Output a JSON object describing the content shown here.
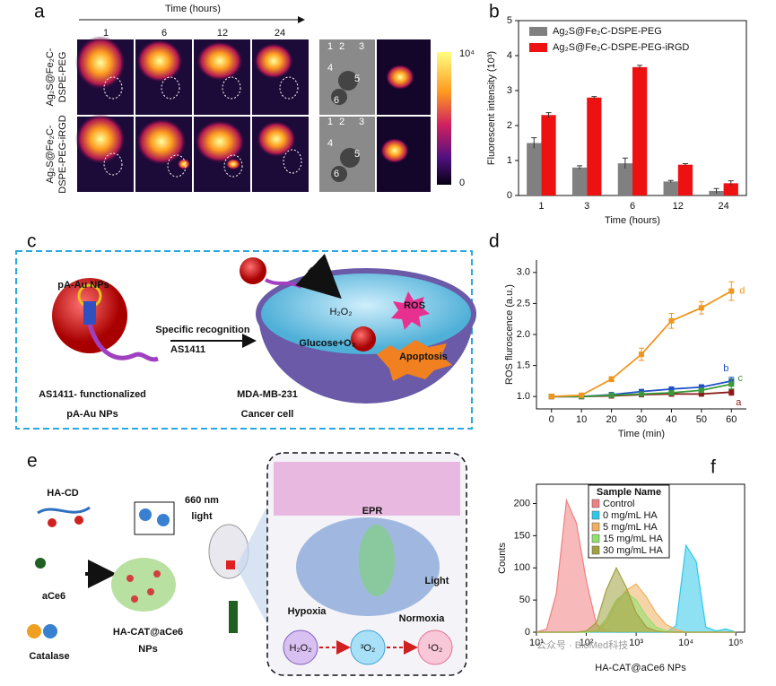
{
  "panels": [
    "a",
    "b",
    "c",
    "d",
    "e",
    "f"
  ],
  "panel_a": {
    "time_axis": "Time (hours)",
    "time_points": [
      "1",
      "6",
      "12",
      "24"
    ],
    "groups": [
      [
        "Ag₂S@Fe₂C-",
        "DSPE-PEG"
      ],
      [
        "Ag₂S@Fe₂C-",
        "DSPE-PEG-iRGD"
      ]
    ],
    "organ_numbers": [
      [
        "1",
        "2",
        "3",
        "4",
        "5",
        "6"
      ],
      [
        "1",
        "2",
        "3",
        "4",
        "5",
        "6"
      ]
    ],
    "colorbar_max": "10⁴",
    "colorbar_min": "0"
  },
  "panel_c": {
    "np_label": "pA-Au NPs",
    "aptamer": "AS1411",
    "step": "Specific recognition",
    "np_caption": [
      "AS1411- functionalized",
      "pA-Au NPs"
    ],
    "h2o2": "H₂O₂",
    "ros": "ROS",
    "glucose": "Glucose+O₂",
    "apoptosis": "Apoptosis",
    "cell_caption": [
      "MDA-MB-231",
      "Cancer cell"
    ]
  },
  "panel_e": {
    "ha_cd": "HA-CD",
    "ace6": "aCe6",
    "catalase": "Catalase",
    "np": [
      "HA-CAT@aCe6",
      "NPs"
    ],
    "light": [
      "660 nm",
      "light"
    ],
    "epr": "EPR",
    "light_tumor": "Light",
    "hypoxia": "Hypoxia",
    "normoxia": "Normoxia",
    "species": [
      "H₂O₂",
      "³O₂",
      "¹O₂"
    ]
  },
  "watermark": "公众号 · BioMed科技",
  "chart_data": [
    {
      "type": "bar",
      "xlabel": "Time (hours)",
      "ylabel": "Fluorescent intensity (10³)",
      "categories": [
        "1",
        "3",
        "6",
        "12",
        "24"
      ],
      "series": [
        {
          "name": "Ag₂S@Fe₂C-DSPE-PEG",
          "color": "#808080",
          "values": [
            1.5,
            0.8,
            0.92,
            0.4,
            0.13
          ],
          "errors": [
            0.15,
            0.05,
            0.15,
            0.03,
            0.07
          ]
        },
        {
          "name": "Ag₂S@Fe₂C-DSPE-PEG-iRGD",
          "color": "#ee1111",
          "values": [
            2.3,
            2.8,
            3.67,
            0.88,
            0.35
          ],
          "errors": [
            0.07,
            0.03,
            0.05,
            0.03,
            0.07
          ]
        }
      ],
      "ylim": [
        0,
        5
      ],
      "yticks": [
        0,
        1,
        2,
        3,
        4,
        5
      ]
    },
    {
      "type": "line",
      "xlabel": "Time (min)",
      "ylabel": "ROS fluroscence (a.u.)",
      "x": [
        0,
        10,
        20,
        30,
        40,
        50,
        60
      ],
      "series": [
        {
          "name": "a",
          "color": "#8b1a1a",
          "values": [
            1.0,
            1.0,
            1.01,
            1.03,
            1.04,
            1.04,
            1.07
          ],
          "errors": [
            0.01,
            0.01,
            0.01,
            0.02,
            0.02,
            0.02,
            0.05
          ]
        },
        {
          "name": "b",
          "color": "#2050c8",
          "values": [
            1.0,
            1.0,
            1.03,
            1.08,
            1.12,
            1.15,
            1.25
          ],
          "errors": [
            0.01,
            0.02,
            0.02,
            0.03,
            0.03,
            0.04,
            0.06
          ]
        },
        {
          "name": "c",
          "color": "#3a9a3a",
          "values": [
            1.0,
            1.0,
            1.02,
            1.04,
            1.06,
            1.1,
            1.2
          ],
          "errors": [
            0.01,
            0.01,
            0.02,
            0.02,
            0.02,
            0.03,
            0.08
          ]
        },
        {
          "name": "d",
          "color": "#f0961e",
          "values": [
            1.0,
            1.02,
            1.28,
            1.68,
            2.22,
            2.43,
            2.7
          ],
          "errors": [
            0.02,
            0.03,
            0.04,
            0.1,
            0.12,
            0.1,
            0.15
          ]
        }
      ],
      "xlim": [
        -5,
        65
      ],
      "xticks": [
        0,
        10,
        20,
        30,
        40,
        50,
        60
      ],
      "ylim": [
        0.8,
        3.2
      ],
      "yticks": [
        {
          "value": 1,
          "label": "1.0"
        },
        1.5,
        {
          "value": 2,
          "label": "2.0"
        },
        2.5,
        {
          "value": 3,
          "label": "3.0"
        }
      ]
    },
    {
      "type": "area",
      "xlabel": "HA-CAT@aCe6 NPs",
      "ylabel": "Counts",
      "xscale": "log",
      "legend_title": "Sample Name",
      "x": [
        10,
        16,
        25,
        40,
        63,
        100,
        160,
        250,
        400,
        630,
        1000,
        1600,
        2500,
        4000,
        6300,
        10000,
        16000,
        25000,
        40000,
        63000,
        100000
      ],
      "series": [
        {
          "name": "Control",
          "color": "#f08080",
          "values": [
            0,
            5,
            60,
            205,
            170,
            80,
            12,
            2,
            0,
            0,
            0,
            0,
            0,
            0,
            0,
            0,
            0,
            0,
            0,
            0,
            0
          ]
        },
        {
          "name": "0 mg/mL HA",
          "color": "#30c8e8",
          "values": [
            0,
            0,
            0,
            0,
            0,
            0,
            0,
            0,
            0,
            0,
            0,
            0,
            0,
            0,
            10,
            135,
            110,
            8,
            2,
            5,
            0
          ]
        },
        {
          "name": "5 mg/mL HA",
          "color": "#f0b060",
          "values": [
            0,
            0,
            0,
            0,
            0,
            0,
            2,
            15,
            45,
            65,
            75,
            55,
            30,
            12,
            4,
            0,
            0,
            0,
            0,
            0,
            0
          ]
        },
        {
          "name": "15 mg/mL HA",
          "color": "#90e070",
          "values": [
            0,
            0,
            0,
            0,
            0,
            0,
            3,
            20,
            50,
            62,
            50,
            25,
            8,
            2,
            0,
            0,
            0,
            0,
            0,
            0,
            0
          ]
        },
        {
          "name": "30 mg/mL HA",
          "color": "#a0a040",
          "values": [
            0,
            0,
            0,
            0,
            0,
            2,
            15,
            65,
            100,
            70,
            30,
            8,
            2,
            0,
            0,
            0,
            0,
            0,
            0,
            0,
            0
          ]
        }
      ],
      "xlim": [
        10,
        150000
      ],
      "xticks": [
        {
          "value": 10,
          "label": "10¹"
        },
        {
          "value": 100,
          "label": "10²"
        },
        {
          "value": 1000,
          "label": "10³"
        },
        {
          "value": 10000,
          "label": "10⁴"
        },
        {
          "value": 100000,
          "label": "10⁵"
        }
      ],
      "ylim": [
        0,
        230
      ],
      "yticks": [
        0,
        50,
        100,
        150,
        200
      ]
    }
  ]
}
